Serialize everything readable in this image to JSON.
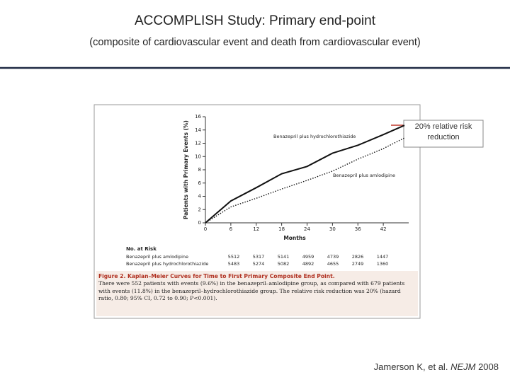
{
  "slide_title": "ACCOMPLISH Study: Primary end-point",
  "slide_subtitle": "(composite of cardiovascular event and death from cardiovascular event)",
  "chart_data": {
    "type": "line",
    "x_label": "Months",
    "y_label": "Patients with Primary Events (%)",
    "x": [
      0,
      6,
      12,
      18,
      24,
      30,
      36,
      42,
      47
    ],
    "series": [
      {
        "name": "Benazepril plus hydrochlorothiazide",
        "color": "#111111",
        "style": "solid",
        "values": [
          0,
          3.3,
          5.3,
          7.4,
          8.5,
          10.5,
          11.7,
          13.3,
          14.7
        ]
      },
      {
        "name": "Benazepril plus amlodipine",
        "color": "#111111",
        "style": "dotted",
        "values": [
          0,
          2.4,
          3.7,
          5.1,
          6.4,
          7.8,
          9.6,
          11.2,
          12.8
        ]
      }
    ],
    "xlim": [
      0,
      48
    ],
    "ylim": [
      0,
      16
    ],
    "xticks": [
      0,
      6,
      12,
      18,
      24,
      30,
      36,
      42
    ],
    "yticks": [
      0,
      2,
      4,
      6,
      8,
      10,
      12,
      14,
      16
    ],
    "annotation": "20% relative risk reduction",
    "risk_table": {
      "title": "No. at Risk",
      "rows": [
        {
          "label": "Benazepril plus amlodipine",
          "values": [
            5512,
            5317,
            5141,
            4959,
            4739,
            2826,
            1447
          ]
        },
        {
          "label": "Benazepril plus hydrochlorothiazide",
          "values": [
            5483,
            5274,
            5082,
            4892,
            4655,
            2749,
            1360
          ]
        }
      ]
    },
    "caption_title": "Figure 2. Kaplan–Meier Curves for Time to First Primary Composite End Point.",
    "caption": "There were 552 patients with events (9.6%) in the benazepril–amlodipine group, as compared with 679 patients with events (11.8%) in the benazepril–hydrochlorothiazide group. The relative risk reduction was 20% (hazard ratio, 0.80; 95% CI, 0.72 to 0.90; P<0.001)."
  },
  "citation": {
    "authors": "Jamerson K, et al.",
    "journal": "NEJM",
    "year": "2008"
  }
}
